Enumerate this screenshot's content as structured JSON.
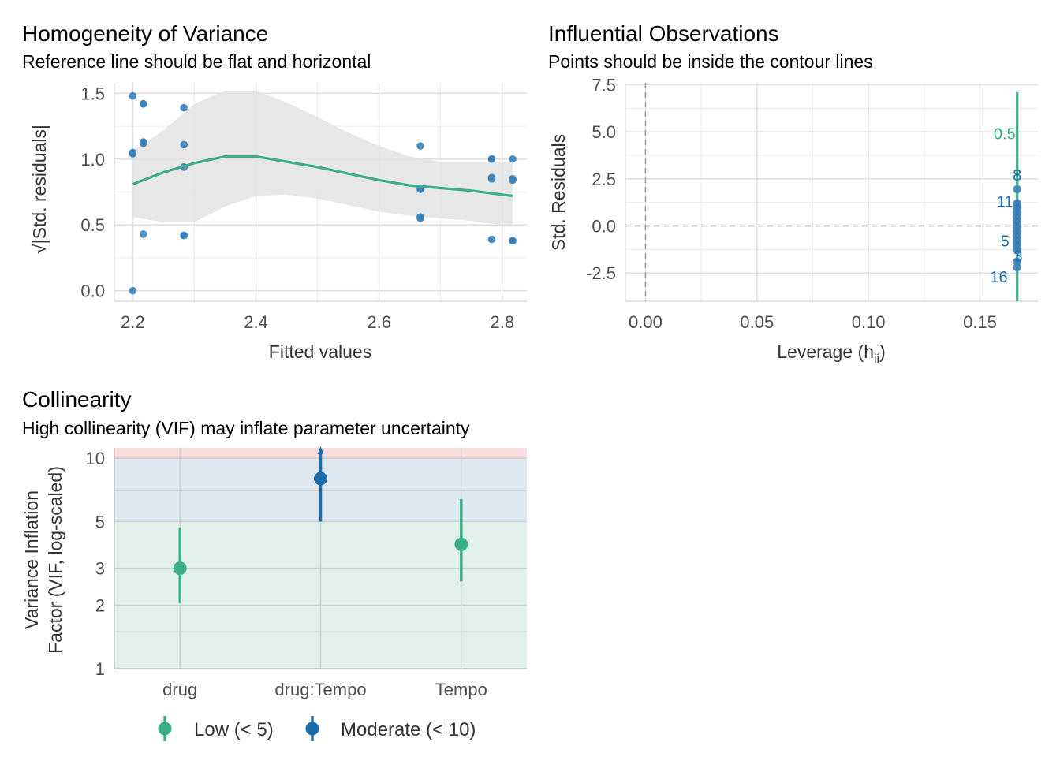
{
  "colors": {
    "low": "#3aaf85",
    "moderate": "#1b6ca8",
    "point": "#3a7fb8",
    "band": "#e3e3e3"
  },
  "chart_data": [
    {
      "id": "homogeneity",
      "type": "scatter",
      "title": "Homogeneity of Variance",
      "subtitle": "Reference line should be flat and horizontal",
      "xlabel": "Fitted values",
      "ylabel": "√|Std. residuals|",
      "xlim": [
        2.17,
        2.84
      ],
      "ylim": [
        -0.08,
        1.58
      ],
      "xticks": [
        2.2,
        2.4,
        2.6,
        2.8
      ],
      "xtick_labels": [
        "2.2",
        "2.4",
        "2.6",
        "2.8"
      ],
      "yticks": [
        0.0,
        0.5,
        1.0,
        1.5
      ],
      "ytick_labels": [
        "0.0",
        "0.5",
        "1.0",
        "1.5"
      ],
      "grid": true,
      "points": [
        {
          "x": 2.2,
          "y": 1.48
        },
        {
          "x": 2.2,
          "y": 1.05
        },
        {
          "x": 2.2,
          "y": 1.04
        },
        {
          "x": 2.2,
          "y": 0.0
        },
        {
          "x": 2.217,
          "y": 1.42
        },
        {
          "x": 2.217,
          "y": 1.42
        },
        {
          "x": 2.217,
          "y": 1.13
        },
        {
          "x": 2.217,
          "y": 1.12
        },
        {
          "x": 2.217,
          "y": 0.43
        },
        {
          "x": 2.283,
          "y": 1.39
        },
        {
          "x": 2.283,
          "y": 1.11
        },
        {
          "x": 2.283,
          "y": 0.94
        },
        {
          "x": 2.283,
          "y": 0.42
        },
        {
          "x": 2.283,
          "y": 0.42
        },
        {
          "x": 2.667,
          "y": 1.1
        },
        {
          "x": 2.667,
          "y": 0.78
        },
        {
          "x": 2.667,
          "y": 0.77
        },
        {
          "x": 2.667,
          "y": 0.56
        },
        {
          "x": 2.667,
          "y": 0.55
        },
        {
          "x": 2.783,
          "y": 1.0
        },
        {
          "x": 2.783,
          "y": 1.0
        },
        {
          "x": 2.783,
          "y": 0.86
        },
        {
          "x": 2.783,
          "y": 0.85
        },
        {
          "x": 2.783,
          "y": 0.39
        },
        {
          "x": 2.817,
          "y": 1.0
        },
        {
          "x": 2.817,
          "y": 0.85
        },
        {
          "x": 2.817,
          "y": 0.84
        },
        {
          "x": 2.817,
          "y": 0.38
        },
        {
          "x": 2.817,
          "y": 0.38
        }
      ],
      "smooth": {
        "x": [
          2.2,
          2.25,
          2.3,
          2.35,
          2.4,
          2.45,
          2.5,
          2.55,
          2.6,
          2.65,
          2.7,
          2.75,
          2.8,
          2.817
        ],
        "y": [
          0.81,
          0.9,
          0.97,
          1.02,
          1.02,
          0.98,
          0.94,
          0.89,
          0.84,
          0.8,
          0.78,
          0.76,
          0.73,
          0.72
        ],
        "lower": [
          0.56,
          0.52,
          0.52,
          0.64,
          0.72,
          0.73,
          0.7,
          0.65,
          0.6,
          0.57,
          0.55,
          0.53,
          0.5,
          0.49
        ],
        "upper": [
          1.06,
          1.22,
          1.42,
          1.52,
          1.52,
          1.43,
          1.32,
          1.2,
          1.1,
          1.02,
          0.98,
          0.98,
          0.98,
          0.98
        ]
      }
    },
    {
      "id": "influential",
      "type": "scatter",
      "title": "Influential Observations",
      "subtitle": "Points should be inside the contour lines",
      "xlabel": "Leverage (h",
      "xlabel_sub": "ii",
      "xlabel_end": ")",
      "ylabel": "Std. Residuals",
      "xlim": [
        -0.009,
        0.176
      ],
      "ylim": [
        -4.0,
        7.6
      ],
      "xticks": [
        0.0,
        0.05,
        0.1,
        0.15
      ],
      "xtick_labels": [
        "0.00",
        "0.05",
        "0.10",
        "0.15"
      ],
      "yticks": [
        -2.5,
        0.0,
        2.5,
        5.0,
        7.5
      ],
      "ytick_labels": [
        "-2.5",
        "0.0",
        "2.5",
        "5.0",
        "7.5"
      ],
      "grid": true,
      "ref_lines": {
        "x": 0.0,
        "y": 0.0
      },
      "contour": {
        "label": "0.5",
        "x": 0.1667,
        "y_from": -4.0,
        "y_to": 7.1,
        "label_y": 4.9
      },
      "points": [
        {
          "x": 0.1667,
          "y": 1.95
        },
        {
          "x": 0.1667,
          "y": 1.2
        },
        {
          "x": 0.1667,
          "y": 1.1
        },
        {
          "x": 0.1667,
          "y": 0.9
        },
        {
          "x": 0.1667,
          "y": 0.7
        },
        {
          "x": 0.1667,
          "y": 0.5
        },
        {
          "x": 0.1667,
          "y": 0.3
        },
        {
          "x": 0.1667,
          "y": 0.1
        },
        {
          "x": 0.1667,
          "y": -0.1
        },
        {
          "x": 0.1667,
          "y": -0.3
        },
        {
          "x": 0.1667,
          "y": -0.5
        },
        {
          "x": 0.1667,
          "y": -0.7
        },
        {
          "x": 0.1667,
          "y": -0.9
        },
        {
          "x": 0.1667,
          "y": -1.1
        },
        {
          "x": 0.1667,
          "y": -1.3
        },
        {
          "x": 0.1667,
          "y": -1.9
        },
        {
          "x": 0.1667,
          "y": -2.2
        }
      ],
      "labels": [
        {
          "text": "8",
          "x": 0.1667,
          "y": 2.7
        },
        {
          "text": "11",
          "x": 0.1612,
          "y": 1.3
        },
        {
          "text": "5",
          "x": 0.1612,
          "y": -0.8
        },
        {
          "text": "3",
          "x": 0.1672,
          "y": -1.6
        },
        {
          "text": "16",
          "x": 0.1585,
          "y": -2.7
        }
      ]
    },
    {
      "id": "collinearity",
      "type": "scatter",
      "title": "Collinearity",
      "subtitle": "High collinearity (VIF) may inflate parameter uncertainty",
      "ylabel_line1": "Variance Inflation",
      "ylabel_line2": "Factor (VIF, log-scaled)",
      "yscale": "log",
      "ylim": [
        1,
        11.2
      ],
      "yticks": [
        1,
        2,
        3,
        5,
        10
      ],
      "ytick_labels": [
        "1",
        "2",
        "3",
        "5",
        "10"
      ],
      "minor_ticks": [
        1.5,
        7
      ],
      "categories": [
        "drug",
        "drug:Tempo",
        "Tempo"
      ],
      "vif": [
        3.0,
        8.0,
        3.9
      ],
      "ci_low": [
        2.05,
        5.0,
        2.6
      ],
      "ci_high": [
        4.7,
        11.2,
        6.4
      ],
      "group": [
        "low",
        "moderate",
        "low"
      ],
      "zones": [
        {
          "name": "low",
          "from": 1,
          "to": 5,
          "color": "#e1f1ea"
        },
        {
          "name": "moderate",
          "from": 5,
          "to": 10,
          "color": "#dde8f0"
        },
        {
          "name": "high",
          "from": 10,
          "to": 11.2,
          "color": "#f9dde1"
        }
      ],
      "legend": [
        {
          "key": "low",
          "label": "Low (< 5)"
        },
        {
          "key": "moderate",
          "label": "Moderate (< 10)"
        }
      ]
    }
  ]
}
